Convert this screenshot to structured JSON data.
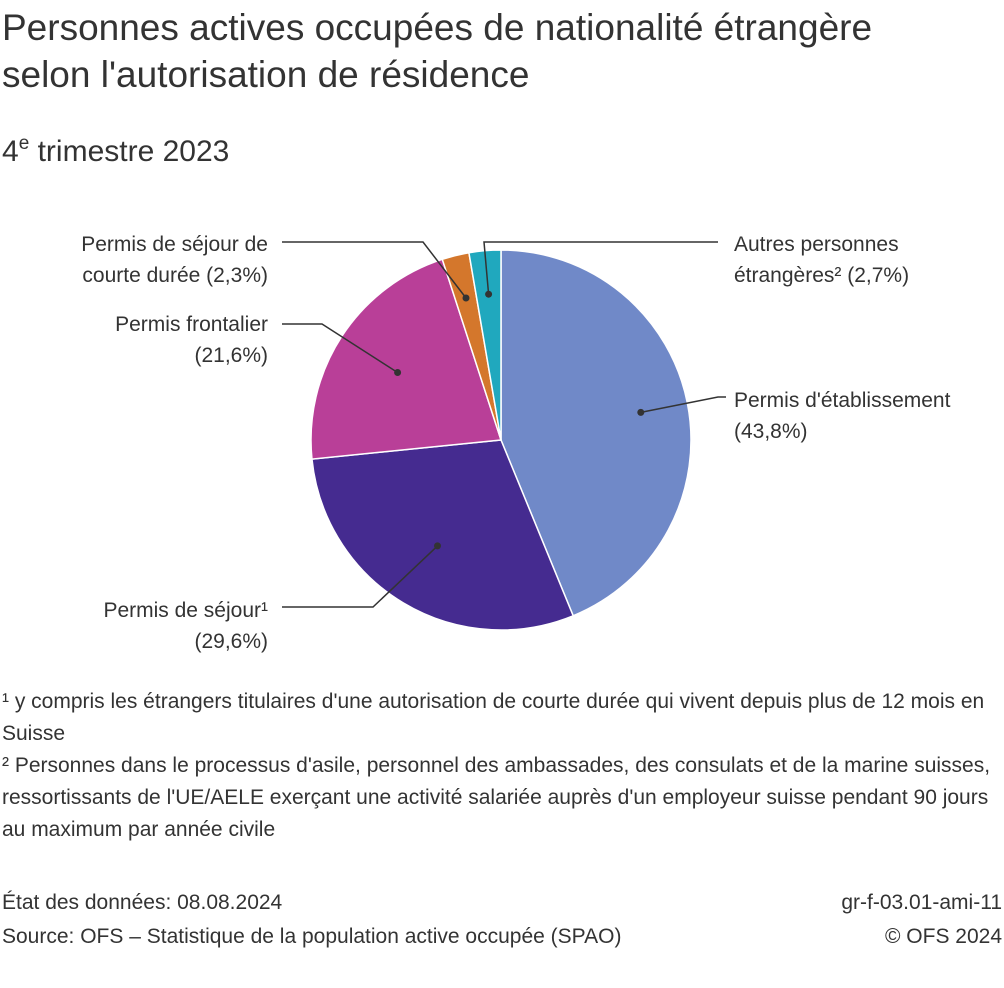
{
  "chart_data": {
    "type": "pie",
    "title_line1": "Personnes actives occupées de nationalité étrangère",
    "title_line2": "selon l'autorisation de résidence",
    "subtitle_number": "4",
    "subtitle_sup": "e",
    "subtitle_rest": " trimestre 2023",
    "slices": [
      {
        "label_line1": "Permis d'établissement",
        "label_line2": "(43,8%)",
        "value": 43.8,
        "color": "#7089c8"
      },
      {
        "label_line1": "Permis de séjour¹",
        "label_line2": "(29,6%)",
        "value": 29.6,
        "color": "#452b90"
      },
      {
        "label_line1": "Permis frontalier",
        "label_line2": "(21,6%)",
        "value": 21.6,
        "color": "#b93f98"
      },
      {
        "label_line1": "Permis de séjour de",
        "label_line2": "courte durée (2,3%)",
        "value": 2.3,
        "color": "#d4772c"
      },
      {
        "label_line1": "Autres personnes",
        "label_line2": "étrangères² (2,7%)",
        "value": 2.7,
        "color": "#20a8be"
      }
    ]
  },
  "footnotes": {
    "note1": "¹ y compris les étrangers titulaires d'une autorisation de courte durée qui vivent depuis plus de 12 mois en Suisse",
    "note2": "² Personnes dans le processus d'asile, personnel des ambassades, des consulats et de la marine suisses, ressortissants de l'UE/AELE exerçant une activité salariée auprès d'un employeur suisse pendant 90 jours au maximum par année civile"
  },
  "footer": {
    "data_status": "État des données: 08.08.2024",
    "source": "Source: OFS – Statistique de la population active occupée (SPAO)",
    "code": "gr-f-03.01-ami-11",
    "copyright": "© OFS 2024"
  }
}
